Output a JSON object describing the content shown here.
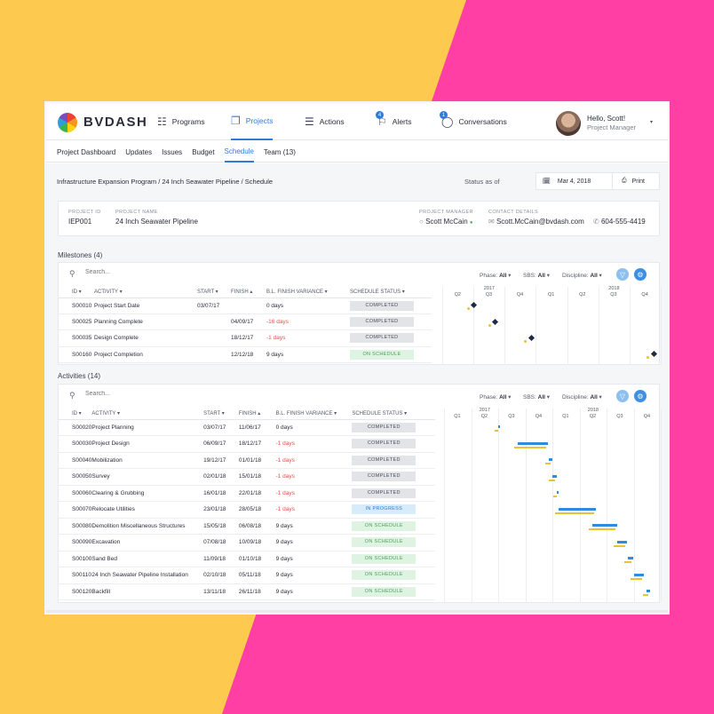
{
  "app": {
    "brand": "BVDASH"
  },
  "nav": {
    "items": [
      {
        "label": "Programs",
        "icon": "hierarchy-icon"
      },
      {
        "label": "Projects",
        "icon": "documents-icon"
      },
      {
        "label": "Actions",
        "icon": "checklist-icon"
      },
      {
        "label": "Alerts",
        "icon": "bell-icon",
        "badge": "4"
      },
      {
        "label": "Conversations",
        "icon": "chat-icon",
        "badge": "1"
      }
    ],
    "user": {
      "greeting": "Hello, Scott!",
      "role": "Project Manager"
    }
  },
  "subnav": [
    "Project Dashboard",
    "Updates",
    "Issues",
    "Budget",
    "Schedule",
    "Team (13)"
  ],
  "breadcrumb": "Infrastructure Expansion Program / 24 Inch Seawater Pipeline / Schedule",
  "status": {
    "label": "Status as of",
    "date": "Mar 4, 2018",
    "print": "Print"
  },
  "project": {
    "id_label": "PROJECT ID",
    "id": "IEP001",
    "name_label": "PROJECT NAME",
    "name": "24 Inch Seawater Pipeline",
    "pm_label": "PROJECT MANAGER",
    "pm": "Scott McCain",
    "contact_label": "CONTACT DETAILS",
    "email": "Scott.McCain@bvdash.com",
    "phone": "604-555-4419"
  },
  "milestones": {
    "title": "Milestones (4)",
    "search_placeholder": "Search...",
    "filters": {
      "phase": "Phase:",
      "sbs": "SBS:",
      "discipline": "Discipline:",
      "all": "All"
    },
    "columns": [
      "ID",
      "ACTIVITY",
      "START",
      "FINISH",
      "B.L. FINISH VARIANCE",
      "SCHEDULE STATUS"
    ],
    "rows": [
      {
        "id": "S00010",
        "activity": "Project Start Date",
        "start": "03/07/17",
        "finish": "",
        "variance": "0 days",
        "status": "COMPLETED"
      },
      {
        "id": "S00025",
        "activity": "Planning Complete",
        "start": "",
        "finish": "04/09/17",
        "variance": "-16 days",
        "status": "COMPLETED"
      },
      {
        "id": "S00035",
        "activity": "Design Complete",
        "start": "",
        "finish": "18/12/17",
        "variance": "-1 days",
        "status": "COMPLETED"
      },
      {
        "id": "S00160",
        "activity": "Project Completion",
        "start": "",
        "finish": "12/12/18",
        "variance": "9 days",
        "status": "ON SCHEDULE"
      }
    ]
  },
  "activities": {
    "title": "Activities (14)",
    "search_placeholder": "Search...",
    "columns": [
      "ID",
      "ACTIVITY",
      "START",
      "FINISH",
      "B.L. FINISH VARIANCE",
      "SCHEDULE STATUS"
    ],
    "rows": [
      {
        "id": "S00020",
        "activity": "Project Planning",
        "start": "03/07/17",
        "finish": "11/06/17",
        "variance": "0 days",
        "status": "COMPLETED"
      },
      {
        "id": "S00030",
        "activity": "Project Design",
        "start": "06/09/17",
        "finish": "18/12/17",
        "variance": "-1 days",
        "status": "COMPLETED"
      },
      {
        "id": "S00040",
        "activity": "Mobilization",
        "start": "19/12/17",
        "finish": "01/01/18",
        "variance": "-1 days",
        "status": "COMPLETED"
      },
      {
        "id": "S00050",
        "activity": "Survey",
        "start": "02/01/18",
        "finish": "15/01/18",
        "variance": "-1 days",
        "status": "COMPLETED"
      },
      {
        "id": "S00060",
        "activity": "Clearing & Grubbing",
        "start": "16/01/18",
        "finish": "22/01/18",
        "variance": "-1 days",
        "status": "COMPLETED"
      },
      {
        "id": "S00070",
        "activity": "Relocate Utilities",
        "start": "23/01/18",
        "finish": "28/05/18",
        "variance": "-1 days",
        "status": "IN PROGRESS"
      },
      {
        "id": "S00080",
        "activity": "Demolition Miscellaneous Structures",
        "start": "15/05/18",
        "finish": "06/08/18",
        "variance": "9 days",
        "status": "ON SCHEDULE"
      },
      {
        "id": "S00090",
        "activity": "Excavation",
        "start": "07/08/18",
        "finish": "10/09/18",
        "variance": "9 days",
        "status": "ON SCHEDULE"
      },
      {
        "id": "S00100",
        "activity": "Sand Bed",
        "start": "11/09/18",
        "finish": "01/10/18",
        "variance": "9 days",
        "status": "ON SCHEDULE"
      },
      {
        "id": "S00110",
        "activity": "24 Inch Seawater Pipeline Installation",
        "start": "02/10/18",
        "finish": "05/11/18",
        "variance": "9 days",
        "status": "ON SCHEDULE"
      },
      {
        "id": "S00120",
        "activity": "Backfill",
        "start": "13/11/18",
        "finish": "26/11/18",
        "variance": "9 days",
        "status": "ON SCHEDULE"
      }
    ]
  },
  "gantt_milestones": {
    "years": [
      "2017",
      "2018"
    ],
    "quarters": [
      "Q2",
      "Q3",
      "Q4",
      "Q1",
      "Q2",
      "Q3",
      "Q4"
    ]
  },
  "gantt_activities": {
    "years": [
      "2017",
      "2018"
    ],
    "quarters": [
      "Q1",
      "Q2",
      "Q3",
      "Q4",
      "Q1",
      "Q2",
      "Q3",
      "Q4"
    ]
  },
  "colors": {
    "accent": "#2f7bd8",
    "pink_bg": "#ff3fa4",
    "yellow_bg": "#fdc94e"
  }
}
